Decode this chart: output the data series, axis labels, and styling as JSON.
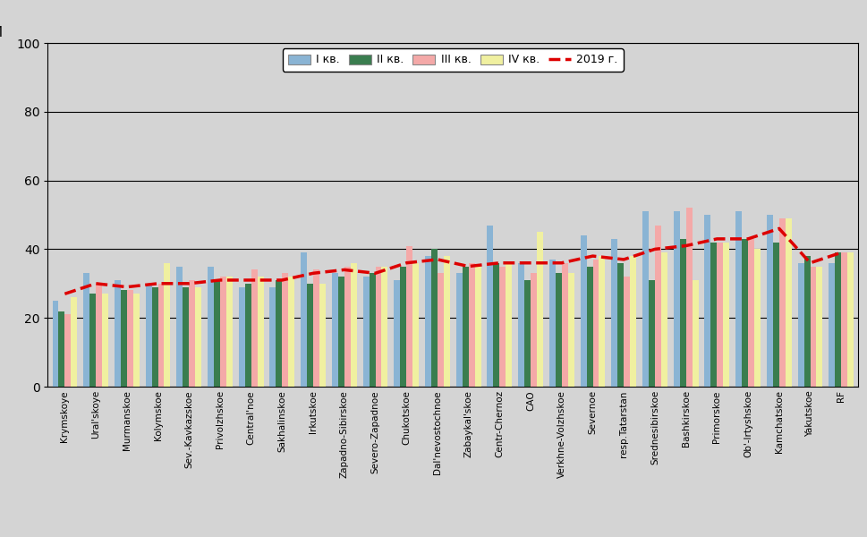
{
  "categories": [
    "Krymskoye",
    "Ural'skoye",
    "Murmanskoe",
    "Kolymskoe",
    "Sev.-Kavkazskoe",
    "Privolzhskoe",
    "Central'noe",
    "Sakhalinskoe",
    "Irkutskoe",
    "Zapadno-Sibirskoe",
    "Severo-Zapadnoe",
    "Chukotskoe",
    "Dal'nevostochnoe",
    "Zabaykal'skoe",
    "Centr-Chernoz",
    "CAO",
    "Verkhne-Volzhskoe",
    "Severnoe",
    "resp.Tatarstan",
    "Srednesibirskoe",
    "Bashkirskoe",
    "Primorskoe",
    "Ob'-Irtyshskoe",
    "Kamchatskoe",
    "Yakutskoe",
    "RF"
  ],
  "q1": [
    25,
    33,
    31,
    30,
    35,
    35,
    29,
    29,
    39,
    33,
    32,
    31,
    38,
    33,
    47,
    36,
    37,
    44,
    43,
    51,
    51,
    50,
    51,
    50,
    36,
    36
  ],
  "q2": [
    22,
    27,
    28,
    29,
    29,
    31,
    30,
    31,
    30,
    32,
    33,
    35,
    40,
    35,
    36,
    31,
    33,
    35,
    36,
    31,
    43,
    42,
    43,
    42,
    38,
    39
  ],
  "q3": [
    21,
    30,
    28,
    30,
    31,
    32,
    34,
    33,
    34,
    35,
    35,
    41,
    33,
    36,
    35,
    33,
    36,
    37,
    32,
    47,
    52,
    42,
    43,
    49,
    35,
    39
  ],
  "q4": [
    26,
    27,
    27,
    36,
    29,
    32,
    32,
    32,
    30,
    36,
    35,
    36,
    38,
    35,
    36,
    45,
    33,
    38,
    38,
    39,
    31,
    42,
    40,
    49,
    35,
    39
  ],
  "line_2019": [
    27,
    30,
    29,
    30,
    30,
    31,
    31,
    31,
    33,
    34,
    33,
    36,
    37,
    35,
    36,
    36,
    36,
    38,
    37,
    40,
    41,
    43,
    43,
    46,
    36,
    39
  ],
  "bar_colors": [
    "#8ab4d4",
    "#3a7d4f",
    "#f4a9a8",
    "#f0f0a0"
  ],
  "line_color": "#dd0000",
  "bg_color": "#d4d4d4",
  "title_y": "М",
  "ylim": [
    0,
    100
  ],
  "yticks": [
    0,
    20,
    40,
    60,
    80,
    100
  ],
  "legend_labels": [
    "I кв.",
    "II кв.",
    "III кв.",
    "IV кв.",
    "2019 г."
  ]
}
